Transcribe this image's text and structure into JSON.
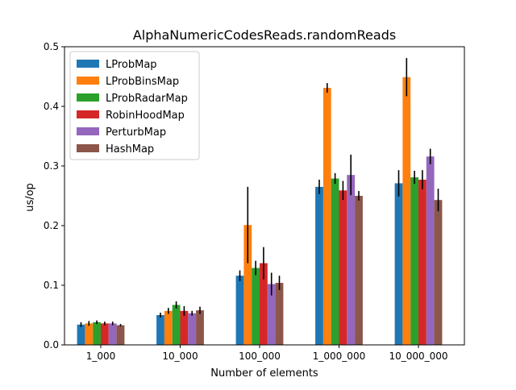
{
  "chart_data": {
    "type": "bar",
    "title": "AlphaNumericCodesReads.randomReads",
    "xlabel": "Number of elements",
    "ylabel": "us/op",
    "categories": [
      "1_000",
      "10_000",
      "100_000",
      "1_000_000",
      "10_000_000"
    ],
    "ylim": [
      0,
      0.5
    ],
    "yticks": [
      "0.0",
      "0.1",
      "0.2",
      "0.3",
      "0.4",
      "0.5"
    ],
    "grid": false,
    "legend_position": "top-left",
    "series": [
      {
        "name": "LProbMap",
        "color": "#1f77b4",
        "values": [
          0.034,
          0.05,
          0.116,
          0.265,
          0.271
        ],
        "errors": [
          0.004,
          0.004,
          0.009,
          0.012,
          0.022
        ]
      },
      {
        "name": "LProbBinsMap",
        "color": "#ff7f0e",
        "values": [
          0.036,
          0.057,
          0.201,
          0.431,
          0.449
        ],
        "errors": [
          0.004,
          0.005,
          0.064,
          0.008,
          0.032
        ]
      },
      {
        "name": "LProbRadarMap",
        "color": "#2ca02c",
        "values": [
          0.038,
          0.067,
          0.129,
          0.279,
          0.281
        ],
        "errors": [
          0.003,
          0.006,
          0.012,
          0.009,
          0.011
        ]
      },
      {
        "name": "RobinHoodMap",
        "color": "#d62728",
        "values": [
          0.036,
          0.057,
          0.137,
          0.259,
          0.277
        ],
        "errors": [
          0.003,
          0.008,
          0.027,
          0.016,
          0.016
        ]
      },
      {
        "name": "PerturbMap",
        "color": "#9467bd",
        "values": [
          0.036,
          0.053,
          0.102,
          0.285,
          0.316
        ],
        "errors": [
          0.003,
          0.004,
          0.019,
          0.034,
          0.013
        ]
      },
      {
        "name": "HashMap",
        "color": "#8c564b",
        "values": [
          0.033,
          0.058,
          0.104,
          0.25,
          0.243
        ],
        "errors": [
          0.002,
          0.006,
          0.012,
          0.008,
          0.019
        ]
      }
    ]
  }
}
